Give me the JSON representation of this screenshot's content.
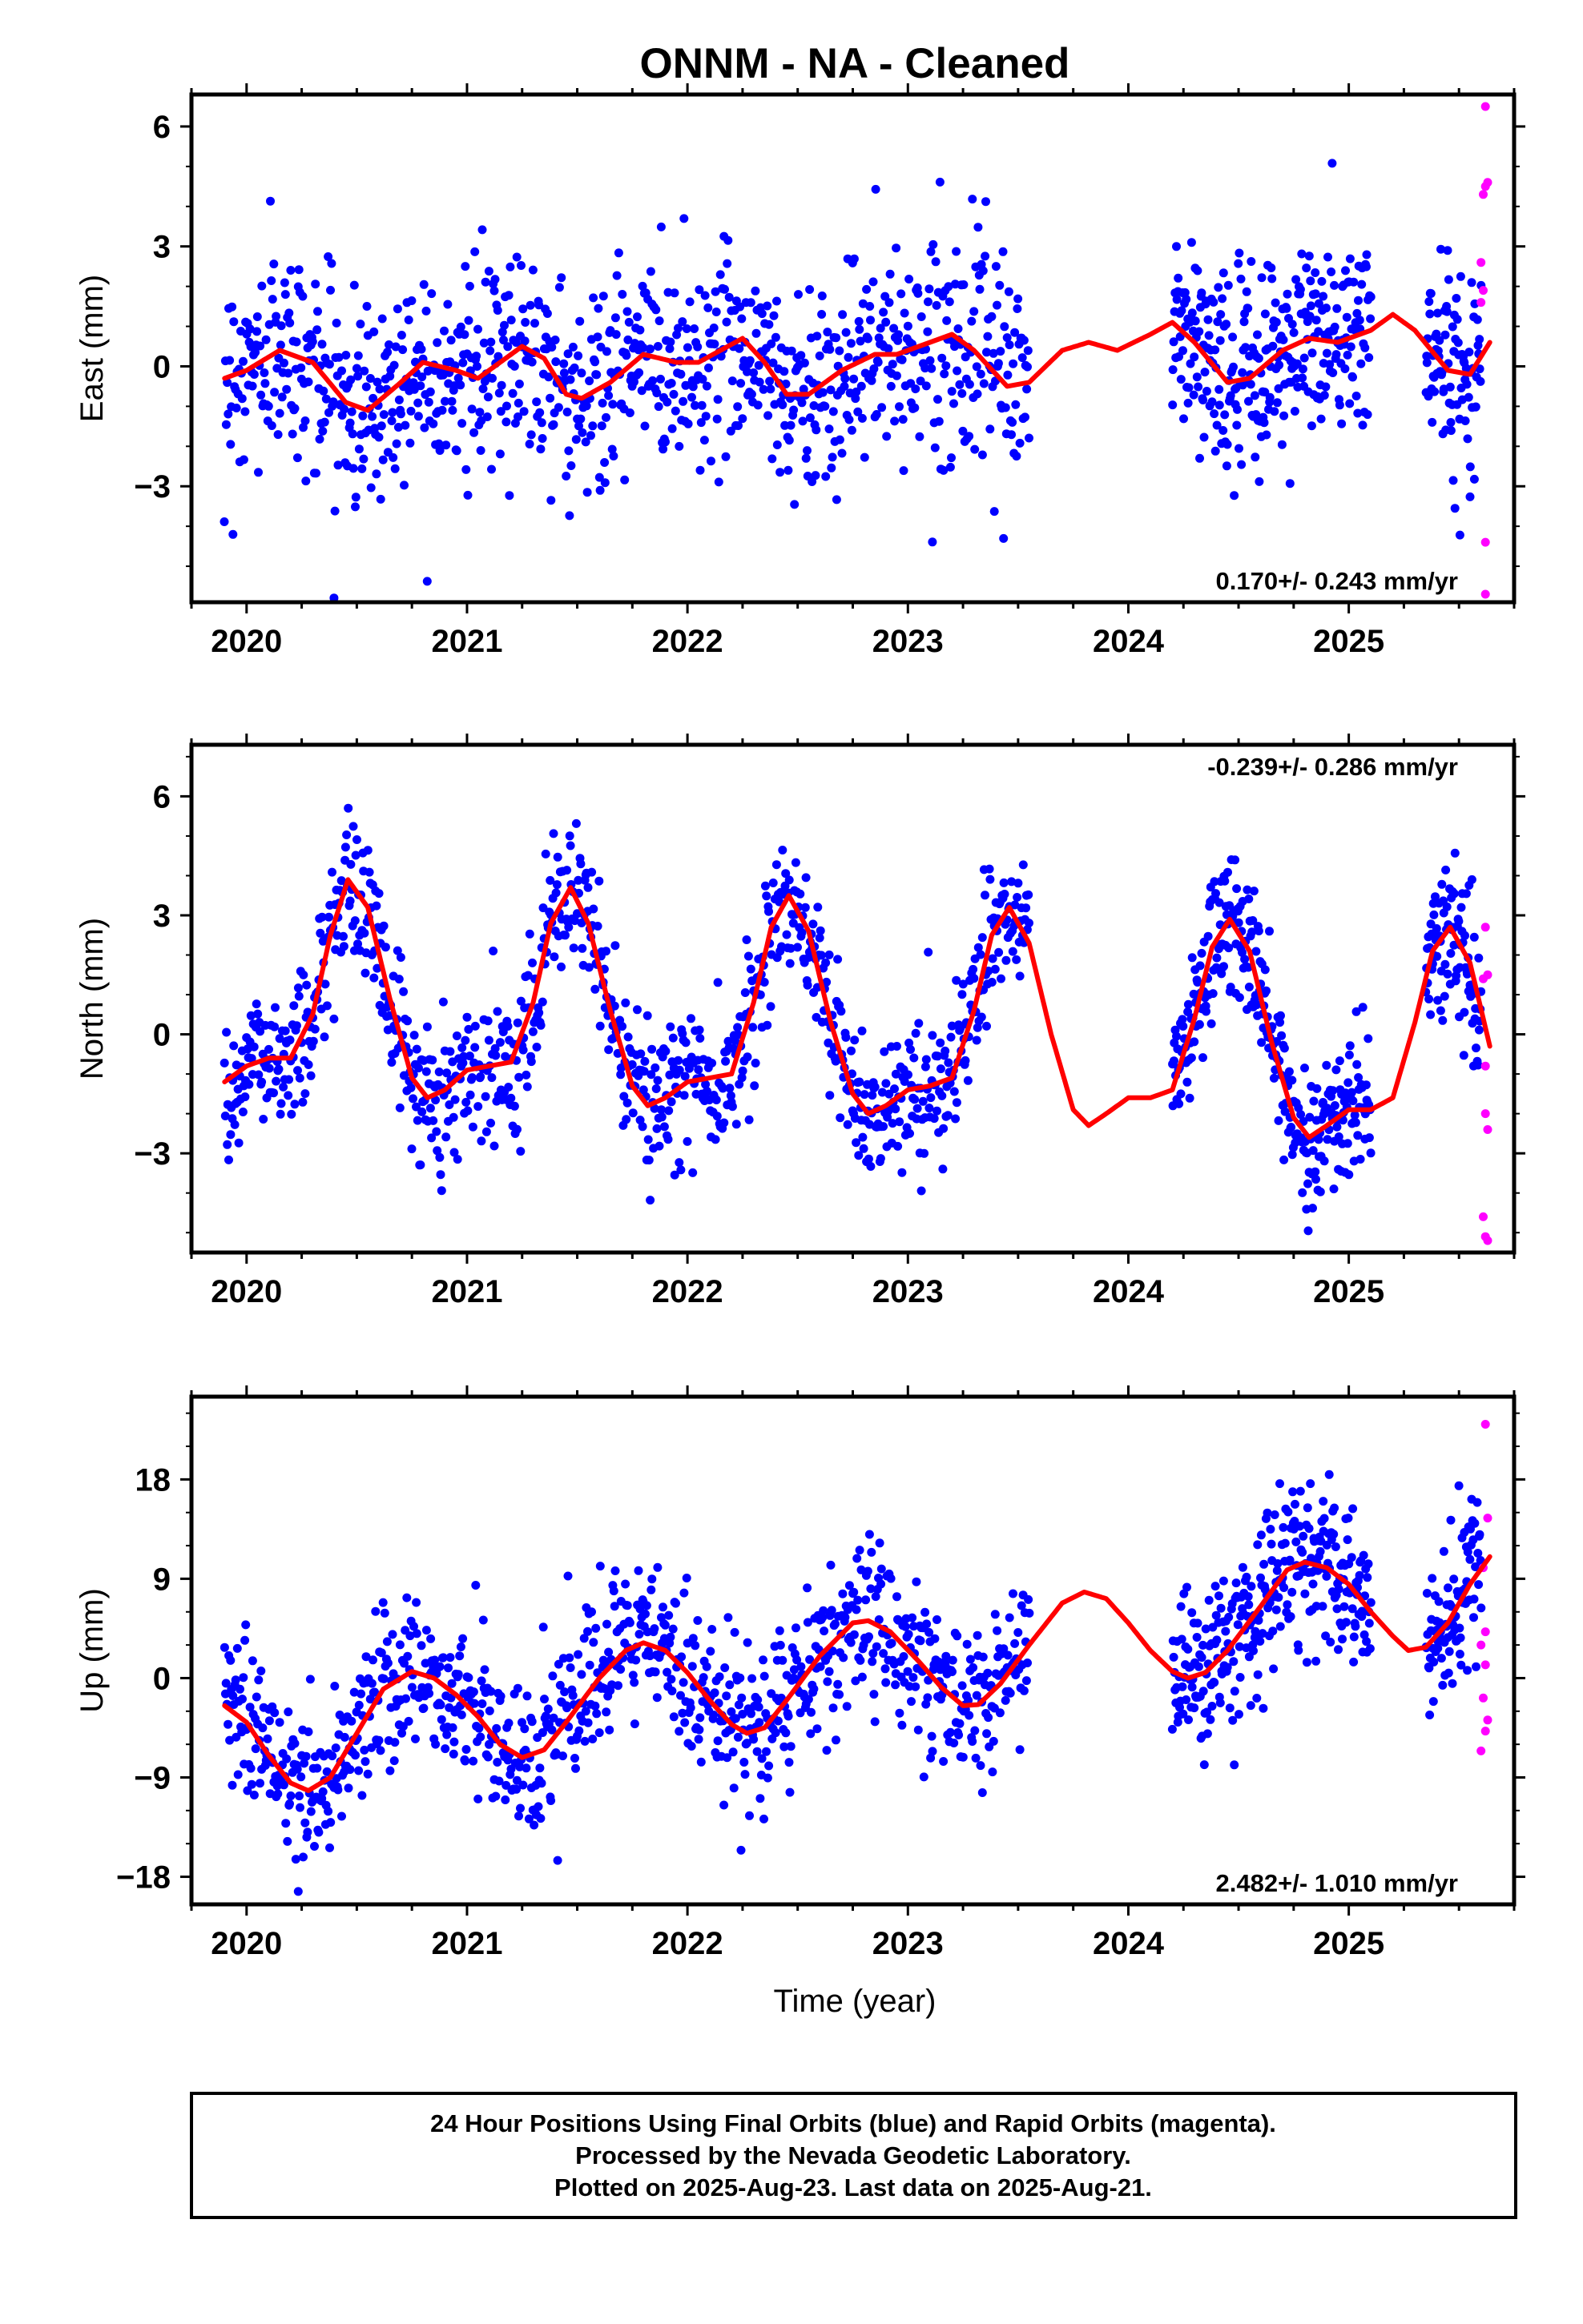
{
  "title": "ONNM  - NA - Cleaned",
  "xlabel": "Time (year)",
  "footer": {
    "line1": "24 Hour Positions Using Final Orbits (blue) and Rapid Orbits (magenta).",
    "line2": "Processed by the Nevada Geodetic Laboratory.",
    "line3": "Plotted on 2025-Aug-23. Last data on 2025-Aug-21."
  },
  "colors": {
    "final": "#0000ff",
    "rapid": "#ff00ff",
    "fit": "#ff0000",
    "frame": "#000000"
  },
  "chart_data": [
    {
      "type": "scatter",
      "component": "East",
      "ylabel": "East (mm)",
      "rate_label": "0.170+/- 0.243 mm/yr",
      "xlim": [
        2019.75,
        2025.75
      ],
      "ylim": [
        -5.9,
        6.8
      ],
      "yticks": [
        6,
        3,
        0,
        -3
      ],
      "ytick_labels": [
        "6",
        "3",
        "0",
        "−3"
      ],
      "xticks": [
        2020,
        2021,
        2022,
        2023,
        2024,
        2025
      ],
      "rate_position": "bottom-right",
      "fit_curve": [
        [
          2019.9,
          -0.3
        ],
        [
          2020.0,
          -0.1
        ],
        [
          2020.15,
          0.4
        ],
        [
          2020.3,
          0.1
        ],
        [
          2020.45,
          -0.9
        ],
        [
          2020.55,
          -1.1
        ],
        [
          2020.7,
          -0.4
        ],
        [
          2020.8,
          0.1
        ],
        [
          2020.95,
          -0.1
        ],
        [
          2021.05,
          -0.3
        ],
        [
          2021.15,
          0.1
        ],
        [
          2021.25,
          0.5
        ],
        [
          2021.35,
          0.2
        ],
        [
          2021.45,
          -0.7
        ],
        [
          2021.52,
          -0.8
        ],
        [
          2021.65,
          -0.4
        ],
        [
          2021.8,
          0.3
        ],
        [
          2021.95,
          0.1
        ],
        [
          2022.05,
          0.1
        ],
        [
          2022.15,
          0.4
        ],
        [
          2022.25,
          0.7
        ],
        [
          2022.35,
          0.1
        ],
        [
          2022.45,
          -0.7
        ],
        [
          2022.55,
          -0.7
        ],
        [
          2022.7,
          -0.1
        ],
        [
          2022.85,
          0.3
        ],
        [
          2022.95,
          0.3
        ],
        [
          2023.1,
          0.6
        ],
        [
          2023.2,
          0.8
        ],
        [
          2023.3,
          0.4
        ],
        [
          2023.45,
          -0.5
        ],
        [
          2023.55,
          -0.4
        ],
        [
          2023.7,
          0.4
        ],
        [
          2023.82,
          0.6
        ],
        [
          2023.95,
          0.4
        ],
        [
          2024.1,
          0.8
        ],
        [
          2024.2,
          1.1
        ],
        [
          2024.3,
          0.6
        ],
        [
          2024.45,
          -0.4
        ],
        [
          2024.55,
          -0.3
        ],
        [
          2024.7,
          0.4
        ],
        [
          2024.82,
          0.7
        ],
        [
          2024.95,
          0.6
        ],
        [
          2025.1,
          0.9
        ],
        [
          2025.2,
          1.3
        ],
        [
          2025.3,
          0.9
        ],
        [
          2025.45,
          -0.1
        ],
        [
          2025.55,
          -0.2
        ],
        [
          2025.64,
          0.6
        ]
      ],
      "final_segments": [
        {
          "t0": 2019.9,
          "t1": 2023.55,
          "n": 950,
          "noise": 1.3
        },
        {
          "t0": 2024.2,
          "t1": 2025.1,
          "n": 300,
          "noise": 1.3
        },
        {
          "t0": 2025.35,
          "t1": 2025.6,
          "n": 90,
          "noise": 1.3
        }
      ],
      "rapid_points": [
        [
          2025.62,
          6.5
        ],
        [
          2025.63,
          4.6
        ],
        [
          2025.61,
          4.3
        ],
        [
          2025.62,
          4.5
        ],
        [
          2025.6,
          2.6
        ],
        [
          2025.61,
          1.9
        ],
        [
          2025.6,
          1.6
        ],
        [
          2025.62,
          -4.4
        ],
        [
          2025.62,
          -5.7
        ]
      ]
    },
    {
      "type": "scatter",
      "component": "North",
      "ylabel": "North (mm)",
      "rate_label": "-0.239+/- 0.286 mm/yr",
      "xlim": [
        2019.75,
        2025.75
      ],
      "ylim": [
        -5.5,
        7.3
      ],
      "yticks": [
        6,
        3,
        0,
        -3
      ],
      "ytick_labels": [
        "6",
        "3",
        "0",
        "−3"
      ],
      "xticks": [
        2020,
        2021,
        2022,
        2023,
        2024,
        2025
      ],
      "rate_position": "top-right",
      "fit_curve": [
        [
          2019.9,
          -1.2
        ],
        [
          2020.0,
          -0.8
        ],
        [
          2020.1,
          -0.6
        ],
        [
          2020.2,
          -0.6
        ],
        [
          2020.3,
          0.5
        ],
        [
          2020.38,
          2.5
        ],
        [
          2020.46,
          3.9
        ],
        [
          2020.55,
          3.2
        ],
        [
          2020.65,
          0.9
        ],
        [
          2020.75,
          -1.1
        ],
        [
          2020.82,
          -1.6
        ],
        [
          2020.9,
          -1.4
        ],
        [
          2021.0,
          -0.9
        ],
        [
          2021.1,
          -0.8
        ],
        [
          2021.2,
          -0.7
        ],
        [
          2021.3,
          0.8
        ],
        [
          2021.38,
          2.8
        ],
        [
          2021.47,
          3.7
        ],
        [
          2021.55,
          2.8
        ],
        [
          2021.65,
          0.6
        ],
        [
          2021.75,
          -1.3
        ],
        [
          2021.82,
          -1.8
        ],
        [
          2021.9,
          -1.6
        ],
        [
          2022.0,
          -1.2
        ],
        [
          2022.1,
          -1.1
        ],
        [
          2022.2,
          -1.0
        ],
        [
          2022.3,
          0.8
        ],
        [
          2022.38,
          2.7
        ],
        [
          2022.46,
          3.5
        ],
        [
          2022.55,
          2.6
        ],
        [
          2022.65,
          0.3
        ],
        [
          2022.75,
          -1.5
        ],
        [
          2022.82,
          -2.0
        ],
        [
          2022.9,
          -1.8
        ],
        [
          2023.0,
          -1.4
        ],
        [
          2023.1,
          -1.3
        ],
        [
          2023.2,
          -1.1
        ],
        [
          2023.3,
          0.6
        ],
        [
          2023.38,
          2.5
        ],
        [
          2023.46,
          3.2
        ],
        [
          2023.55,
          2.3
        ],
        [
          2023.65,
          0.0
        ],
        [
          2023.75,
          -1.9
        ],
        [
          2023.82,
          -2.3
        ],
        [
          2023.9,
          -2.0
        ],
        [
          2024.0,
          -1.6
        ],
        [
          2024.1,
          -1.6
        ],
        [
          2024.2,
          -1.4
        ],
        [
          2024.3,
          0.4
        ],
        [
          2024.38,
          2.2
        ],
        [
          2024.46,
          2.9
        ],
        [
          2024.55,
          2.1
        ],
        [
          2024.65,
          -0.2
        ],
        [
          2024.75,
          -2.1
        ],
        [
          2024.82,
          -2.6
        ],
        [
          2024.9,
          -2.3
        ],
        [
          2025.0,
          -1.9
        ],
        [
          2025.1,
          -1.9
        ],
        [
          2025.2,
          -1.6
        ],
        [
          2025.3,
          0.3
        ],
        [
          2025.38,
          2.1
        ],
        [
          2025.46,
          2.7
        ],
        [
          2025.55,
          1.8
        ],
        [
          2025.64,
          -0.3
        ]
      ],
      "final_segments": [
        {
          "t0": 2019.9,
          "t1": 2023.55,
          "n": 950,
          "noise": 0.9
        },
        {
          "t0": 2024.2,
          "t1": 2025.1,
          "n": 300,
          "noise": 0.9
        },
        {
          "t0": 2025.35,
          "t1": 2025.6,
          "n": 90,
          "noise": 0.9
        }
      ],
      "rapid_points": [
        [
          2025.62,
          2.7
        ],
        [
          2025.63,
          1.5
        ],
        [
          2025.61,
          1.4
        ],
        [
          2025.62,
          -0.8
        ],
        [
          2025.62,
          -2.0
        ],
        [
          2025.63,
          -2.4
        ],
        [
          2025.61,
          -4.6
        ],
        [
          2025.62,
          -5.1
        ],
        [
          2025.63,
          -5.2
        ]
      ]
    },
    {
      "type": "scatter",
      "component": "Up",
      "ylabel": "Up (mm)",
      "rate_label": "2.482+/- 1.010 mm/yr",
      "xlim": [
        2019.75,
        2025.75
      ],
      "ylim": [
        -20.5,
        25.5
      ],
      "yticks": [
        18,
        9,
        0,
        -9,
        -18
      ],
      "ytick_labels": [
        "18",
        "9",
        "0",
        "−9",
        "−18"
      ],
      "xticks": [
        2020,
        2021,
        2022,
        2023,
        2024,
        2025
      ],
      "rate_position": "bottom-right",
      "fit_curve": [
        [
          2019.9,
          -2.5
        ],
        [
          2020.0,
          -4.0
        ],
        [
          2020.1,
          -7.0
        ],
        [
          2020.2,
          -9.5
        ],
        [
          2020.28,
          -10.2
        ],
        [
          2020.38,
          -9.0
        ],
        [
          2020.5,
          -5.0
        ],
        [
          2020.62,
          -1.0
        ],
        [
          2020.75,
          0.6
        ],
        [
          2020.85,
          0.0
        ],
        [
          2020.95,
          -1.5
        ],
        [
          2021.05,
          -3.5
        ],
        [
          2021.15,
          -6.0
        ],
        [
          2021.25,
          -7.2
        ],
        [
          2021.35,
          -6.5
        ],
        [
          2021.45,
          -4.0
        ],
        [
          2021.6,
          0.0
        ],
        [
          2021.72,
          2.5
        ],
        [
          2021.8,
          3.2
        ],
        [
          2021.9,
          2.5
        ],
        [
          2022.0,
          0.5
        ],
        [
          2022.1,
          -2.0
        ],
        [
          2022.2,
          -4.2
        ],
        [
          2022.27,
          -5.0
        ],
        [
          2022.35,
          -4.5
        ],
        [
          2022.45,
          -2.0
        ],
        [
          2022.6,
          2.0
        ],
        [
          2022.75,
          5.0
        ],
        [
          2022.82,
          5.2
        ],
        [
          2022.92,
          4.2
        ],
        [
          2023.05,
          1.5
        ],
        [
          2023.15,
          -0.8
        ],
        [
          2023.25,
          -2.5
        ],
        [
          2023.32,
          -2.4
        ],
        [
          2023.42,
          -0.5
        ],
        [
          2023.55,
          3.0
        ],
        [
          2023.7,
          6.8
        ],
        [
          2023.8,
          7.8
        ],
        [
          2023.9,
          7.2
        ],
        [
          2024.0,
          5.0
        ],
        [
          2024.1,
          2.5
        ],
        [
          2024.2,
          0.6
        ],
        [
          2024.27,
          0.0
        ],
        [
          2024.35,
          0.5
        ],
        [
          2024.45,
          2.5
        ],
        [
          2024.6,
          6.5
        ],
        [
          2024.72,
          9.8
        ],
        [
          2024.8,
          10.5
        ],
        [
          2024.9,
          10.0
        ],
        [
          2025.0,
          8.5
        ],
        [
          2025.1,
          6.0
        ],
        [
          2025.2,
          3.8
        ],
        [
          2025.27,
          2.5
        ],
        [
          2025.35,
          2.8
        ],
        [
          2025.45,
          5.0
        ],
        [
          2025.55,
          8.5
        ],
        [
          2025.64,
          11.0
        ]
      ],
      "final_segments": [
        {
          "t0": 2019.9,
          "t1": 2023.55,
          "n": 950,
          "noise": 3.6
        },
        {
          "t0": 2024.2,
          "t1": 2025.1,
          "n": 300,
          "noise": 3.6
        },
        {
          "t0": 2025.35,
          "t1": 2025.6,
          "n": 90,
          "noise": 3.6
        }
      ],
      "rapid_points": [
        [
          2025.62,
          23.0
        ],
        [
          2025.63,
          14.5
        ],
        [
          2025.61,
          10.0
        ],
        [
          2025.62,
          4.2
        ],
        [
          2025.6,
          3.0
        ],
        [
          2025.62,
          1.2
        ],
        [
          2025.61,
          -1.8
        ],
        [
          2025.63,
          -3.8
        ],
        [
          2025.62,
          -4.8
        ],
        [
          2025.6,
          -6.6
        ]
      ]
    }
  ]
}
